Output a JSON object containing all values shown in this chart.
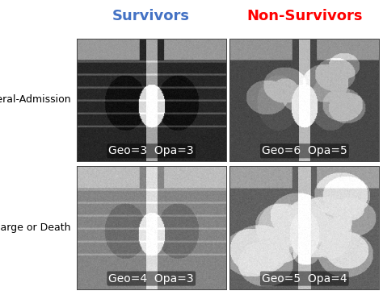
{
  "title_survivors": "Survivors",
  "title_non_survivors": "Non-Survivors",
  "title_survivors_color": "#4472C4",
  "title_non_survivors_color": "#FF0000",
  "row_labels": [
    "General-Admission",
    "Discharge or Death"
  ],
  "captions": [
    [
      "Geo=3  Opa=3",
      "Geo=6  Opa=5"
    ],
    [
      "Geo=4  Opa=3",
      "Geo=5  Opa=4"
    ]
  ],
  "caption_fontsize": 10,
  "row_label_fontsize": 9,
  "title_fontsize": 13,
  "background_color": "#ffffff"
}
